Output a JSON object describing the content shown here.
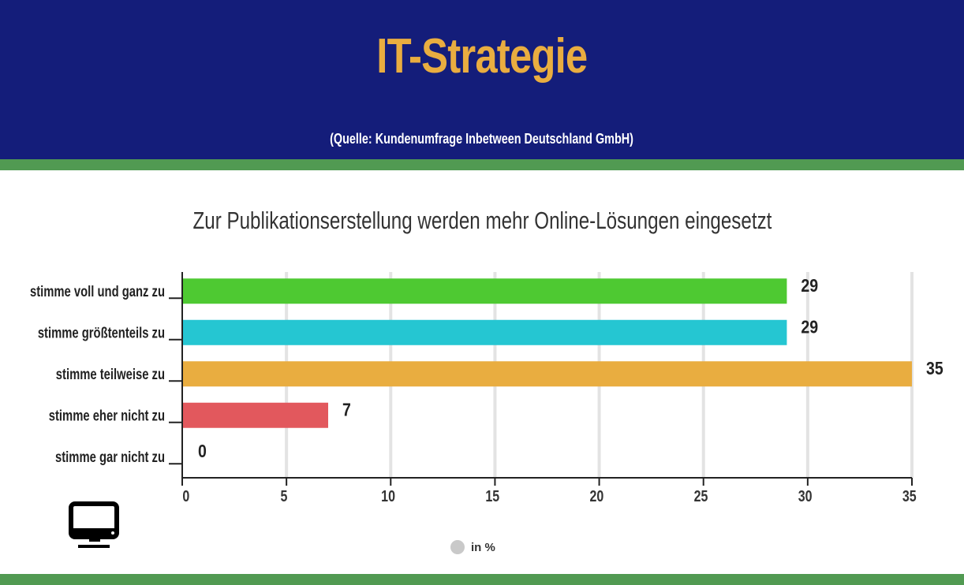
{
  "header": {
    "title": "IT-Strategie",
    "source": "(Quelle: Kundenumfrage Inbetween Deutschland GmbH)"
  },
  "colors": {
    "header_bg": "#141d7a",
    "title": "#e9ad40",
    "band": "#519a52"
  },
  "chart_data": {
    "type": "bar",
    "orientation": "horizontal",
    "title": "Zur Publikationserstellung werden mehr Online-Lösungen eingesetzt",
    "categories": [
      "stimme voll und ganz zu",
      "stimme größtenteils zu",
      "stimme teilweise zu",
      "stimme eher nicht zu",
      "stimme gar nicht zu"
    ],
    "values": [
      29,
      29,
      35,
      7,
      0
    ],
    "colors": [
      "#4ec932",
      "#25c6d2",
      "#e9ad40",
      "#e2585d",
      "#cccccc"
    ],
    "xticks": [
      "0",
      "5",
      "10",
      "15",
      "20",
      "25",
      "30",
      "35"
    ],
    "xlim": [
      0,
      35
    ],
    "grid": true,
    "legend": {
      "label": "in %",
      "placement": "bottom"
    }
  },
  "icons": {
    "monitor": "monitor-icon"
  }
}
